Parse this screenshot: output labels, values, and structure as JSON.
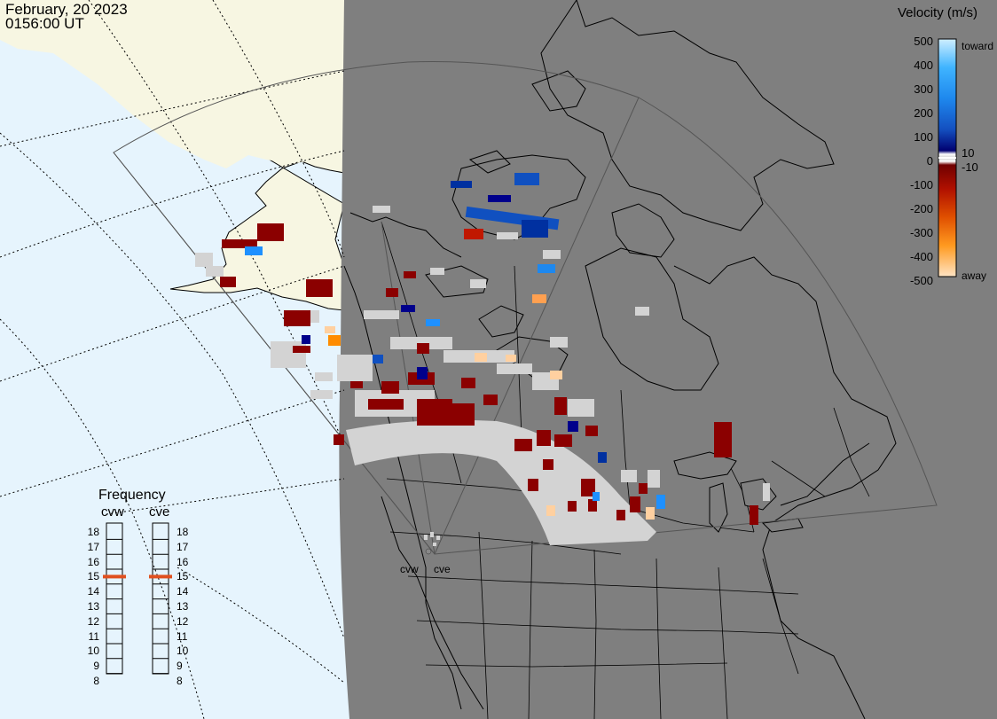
{
  "header": {
    "date": "February, 20 2023",
    "time": "0156:00 UT"
  },
  "colorbar": {
    "title": "Velocity (m/s)",
    "ticks": [
      "500",
      "400",
      "300",
      "200",
      "100",
      "0",
      "-100",
      "-200",
      "-300",
      "-400",
      "-500"
    ],
    "label_toward": "toward",
    "label_away": "away",
    "label_pos10": "10",
    "label_neg10": "-10",
    "colors": {
      "toward_light": "#cfeeff",
      "toward_mid": "#1e90ff",
      "toward_dark": "#000080",
      "zero": "#d3d3d3",
      "away_dark": "#8b0000",
      "away_mid": "#ff8c00",
      "away_light": "#ffe4c4"
    }
  },
  "frequency": {
    "title": "Frequency",
    "radar_left": "cvw",
    "radar_right": "cve",
    "scale": [
      "18",
      "17",
      "16",
      "15",
      "14",
      "13",
      "12",
      "11",
      "10",
      "9",
      "8"
    ],
    "cvw_value_mhz": 15,
    "cve_value_mhz": 15,
    "marker_color": "#e05020"
  },
  "map": {
    "site_label_left": "cvw",
    "site_label_right": "cve",
    "ocean_color": "#e6f4fd",
    "night_color": "#7f7f7f",
    "land_day_color": "#f7f6e2",
    "groundscatter_color": "#d3d3d3"
  }
}
